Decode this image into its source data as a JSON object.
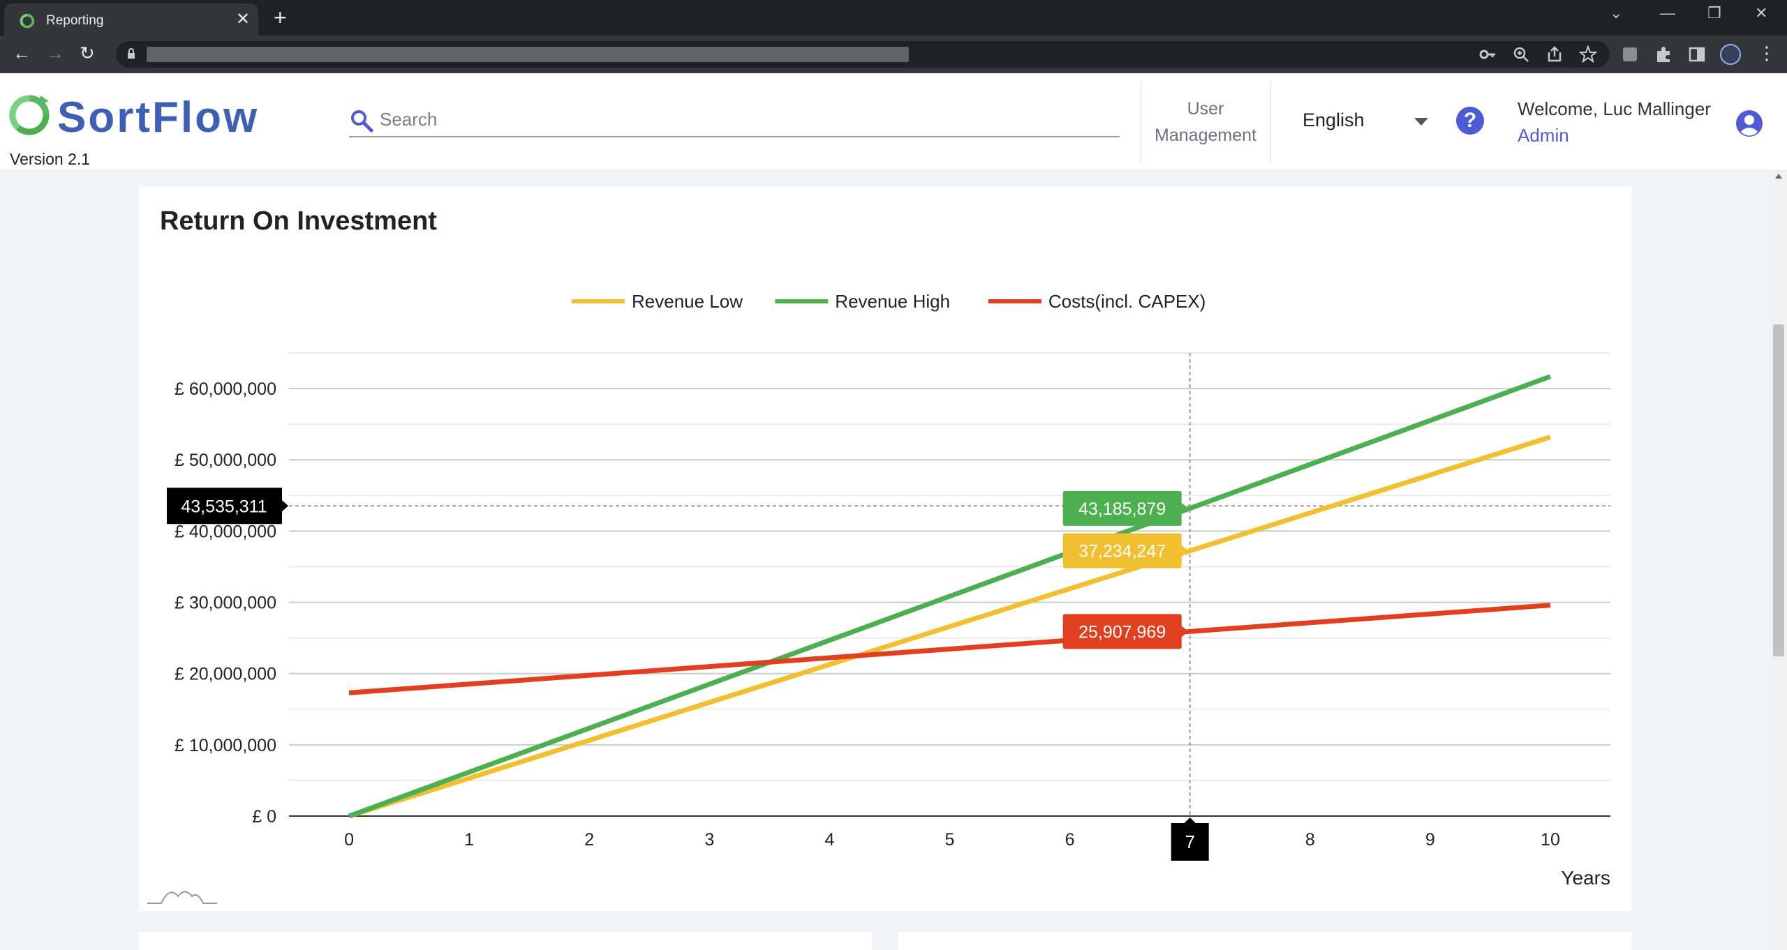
{
  "browser": {
    "tab_title": "Reporting",
    "new_tab_label": "+",
    "close_tab_label": "✕"
  },
  "header": {
    "logo_text": "SortFlow",
    "version": "Version 2.1",
    "search_placeholder": "Search",
    "user_management_line1": "User",
    "user_management_line2": "Management",
    "language": "English",
    "help_label": "?",
    "welcome": "Welcome, Luc Mallinger",
    "role": "Admin"
  },
  "colors": {
    "brand": "#3f5fb5",
    "accent": "#4f5bd5",
    "logo_green": "#5cb85c",
    "revenue_low": "#f0c030",
    "revenue_high": "#4caf50",
    "costs": "#e0401f"
  },
  "card": {
    "title": "Return On Investment"
  },
  "chart_data": {
    "type": "line",
    "title": "Return On Investment",
    "xlabel": "Years",
    "ylabel": "",
    "x": [
      0,
      1,
      2,
      3,
      4,
      5,
      6,
      7,
      8,
      9,
      10
    ],
    "xlim": [
      -0.5,
      10.5
    ],
    "ylim": [
      0,
      65000000
    ],
    "y_ticks": [
      0,
      10000000,
      20000000,
      30000000,
      40000000,
      50000000,
      60000000
    ],
    "y_tick_labels": [
      "£ 0",
      "£ 10,000,000",
      "£ 20,000,000",
      "£ 30,000,000",
      "£ 40,000,000",
      "£ 50,000,000",
      "£ 60,000,000"
    ],
    "x_tick_labels": [
      "0",
      "1",
      "2",
      "3",
      "4",
      "5",
      "6",
      "7",
      "8",
      "9",
      "10"
    ],
    "grid": true,
    "legend_position": "top-center",
    "series": [
      {
        "name": "Revenue Low",
        "color": "#f0c030",
        "values": [
          0,
          5319178,
          10638356,
          15957535,
          21276713,
          26595891,
          31915069,
          37234247,
          42553425,
          47872603,
          53191781
        ]
      },
      {
        "name": "Revenue High",
        "color": "#4caf50",
        "values": [
          0,
          6169411,
          12338823,
          18508234,
          24677645,
          30847056,
          37016468,
          43185879,
          49355290,
          55524701,
          61694113
        ]
      },
      {
        "name": "Costs(incl. CAPEX)",
        "color": "#e0401f",
        "values": [
          17300000,
          18529710,
          19759420,
          20989130,
          22218840,
          23448549,
          24678259,
          25907969,
          27137679,
          28367389,
          29597099
        ]
      }
    ],
    "crosshair": {
      "x": 7,
      "y": 43535311,
      "x_label": "7",
      "y_label": "43,535,311",
      "tooltips": [
        {
          "series": "Revenue High",
          "label": "43,185,879"
        },
        {
          "series": "Revenue Low",
          "label": "37,234,247"
        },
        {
          "series": "Costs(incl. CAPEX)",
          "label": "25,907,969"
        }
      ]
    }
  }
}
